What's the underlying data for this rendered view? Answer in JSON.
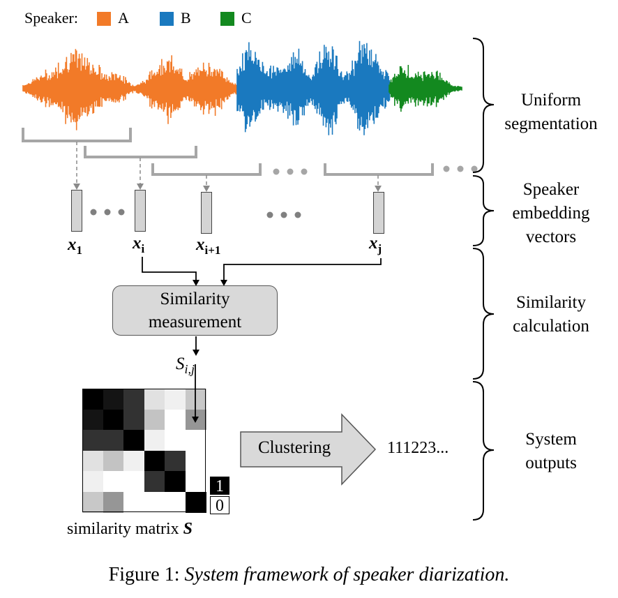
{
  "legend": {
    "title": "Speaker:",
    "speakers": [
      {
        "label": "A",
        "color": "#f27a28"
      },
      {
        "label": "B",
        "color": "#1a79bf"
      },
      {
        "label": "C",
        "color": "#13891f"
      }
    ]
  },
  "stages": [
    {
      "line1": "Uniform",
      "line2": "segmentation"
    },
    {
      "line1": "Speaker",
      "line2": "embedding",
      "line3": "vectors"
    },
    {
      "line1": "Similarity",
      "line2": "calculation"
    },
    {
      "line1": "System",
      "line2": "outputs"
    }
  ],
  "vectors": [
    {
      "base": "x",
      "sub": "1"
    },
    {
      "base": "x",
      "sub": "i"
    },
    {
      "base": "x",
      "sub": "i+1"
    },
    {
      "base": "x",
      "sub": "j"
    }
  ],
  "ellipsis": "• • •",
  "similarity_box": {
    "line1": "Similarity",
    "line2": "measurement"
  },
  "similarity_output": {
    "base": "S",
    "sub": "i,j"
  },
  "matrix": {
    "caption_text": "similarity matrix ",
    "caption_symbol": "S",
    "scale_high": "1",
    "scale_low": "0",
    "gray_levels": [
      [
        0,
        20,
        50,
        225,
        240,
        200
      ],
      [
        20,
        0,
        50,
        195,
        255,
        150
      ],
      [
        50,
        50,
        0,
        240,
        255,
        255
      ],
      [
        225,
        195,
        240,
        0,
        50,
        255
      ],
      [
        240,
        255,
        255,
        50,
        0,
        255
      ],
      [
        200,
        150,
        255,
        255,
        255,
        0
      ]
    ]
  },
  "clustering_label": "Clustering",
  "output_sequence": "111223...",
  "figure_caption": {
    "prefix": "Figure 1: ",
    "text": "System framework of speaker diarization."
  },
  "colors": {
    "gray_stroke": "#a6a6a6",
    "box_fill": "#d9d9d9",
    "arrow_fill": "#d9d9d9"
  }
}
